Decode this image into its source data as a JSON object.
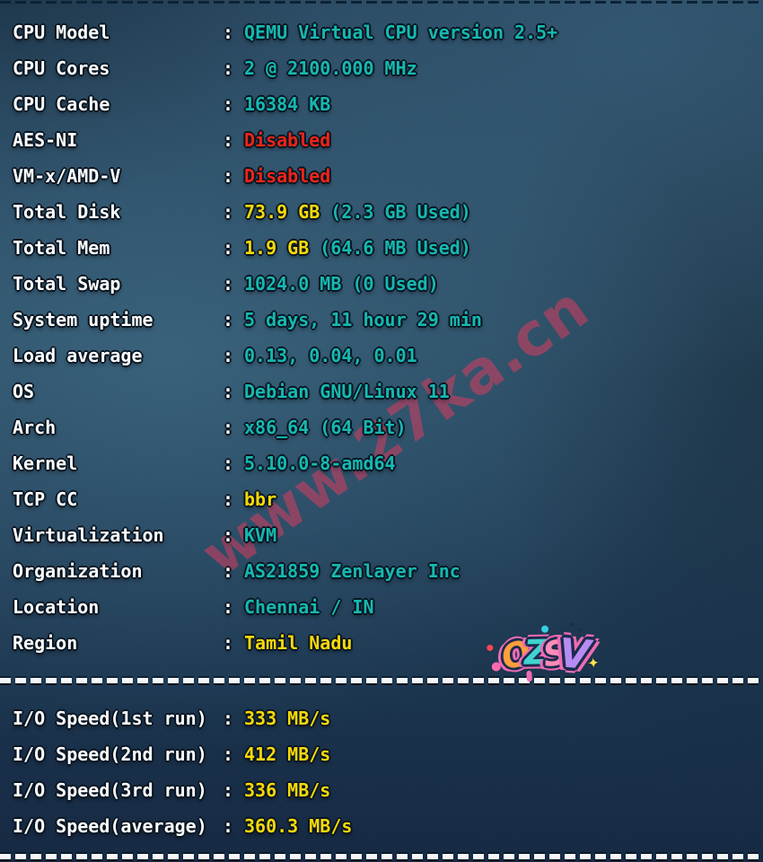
{
  "terminal": {
    "colon": ":",
    "sysinfo_rows": [
      {
        "label": "CPU Model",
        "value": "QEMU Virtual CPU version 2.5+",
        "value_color": "cyan"
      },
      {
        "label": "CPU Cores",
        "value": "2 @ 2100.000 MHz",
        "value_color": "cyan"
      },
      {
        "label": "CPU Cache",
        "value": "16384 KB",
        "value_color": "cyan"
      },
      {
        "label": "AES-NI",
        "value": "Disabled",
        "value_color": "red"
      },
      {
        "label": "VM-x/AMD-V",
        "value": "Disabled",
        "value_color": "red"
      },
      {
        "label": "Total Disk",
        "value": "73.9 GB",
        "value_color": "yellow",
        "extra": "(2.3 GB Used)",
        "extra_color": "cyan"
      },
      {
        "label": "Total Mem",
        "value": "1.9 GB",
        "value_color": "yellow",
        "extra": "(64.6 MB Used)",
        "extra_color": "cyan"
      },
      {
        "label": "Total Swap",
        "value": "1024.0 MB (0 Used)",
        "value_color": "cyan"
      },
      {
        "label": "System uptime",
        "value": "5 days, 11 hour 29 min",
        "value_color": "cyan"
      },
      {
        "label": "Load average",
        "value": "0.13, 0.04, 0.01",
        "value_color": "cyan"
      },
      {
        "label": "OS",
        "value": "Debian GNU/Linux 11",
        "value_color": "cyan"
      },
      {
        "label": "Arch",
        "value": "x86_64 (64 Bit)",
        "value_color": "cyan"
      },
      {
        "label": "Kernel",
        "value": "5.10.0-8-amd64",
        "value_color": "cyan"
      },
      {
        "label": "TCP CC",
        "value": "bbr",
        "value_color": "yellow"
      },
      {
        "label": "Virtualization",
        "value": "KVM",
        "value_color": "cyan"
      },
      {
        "label": "Organization",
        "value": "AS21859 Zenlayer Inc",
        "value_color": "cyan"
      },
      {
        "label": "Location",
        "value": "Chennai / IN",
        "value_color": "cyan"
      },
      {
        "label": "Region",
        "value": "Tamil Nadu",
        "value_color": "yellow"
      }
    ],
    "io_rows": [
      {
        "label": "I/O Speed(1st run)",
        "value": "333 MB/s",
        "value_color": "yellow"
      },
      {
        "label": "I/O Speed(2nd run)",
        "value": "412 MB/s",
        "value_color": "yellow"
      },
      {
        "label": "I/O Speed(3rd run)",
        "value": "336 MB/s",
        "value_color": "yellow"
      },
      {
        "label": "I/O Speed(average)",
        "value": "360.3 MB/s",
        "value_color": "yellow"
      }
    ]
  },
  "watermark": {
    "text": "www.27ka.cn",
    "color": "#e03c5f"
  },
  "logo": {
    "letters": [
      {
        "char": "O",
        "color": "#ff9e3d"
      },
      {
        "char": "Z",
        "color": "#3fd4d0"
      },
      {
        "char": "S",
        "color": "#ff8cb8"
      },
      {
        "char": "V",
        "color": "#b78cf2"
      }
    ],
    "sparkle": "✦"
  },
  "colors": {
    "cyan": "#16b8b0",
    "yellow": "#f7d908",
    "red": "#ee2417",
    "white": "#fdfdfd"
  }
}
